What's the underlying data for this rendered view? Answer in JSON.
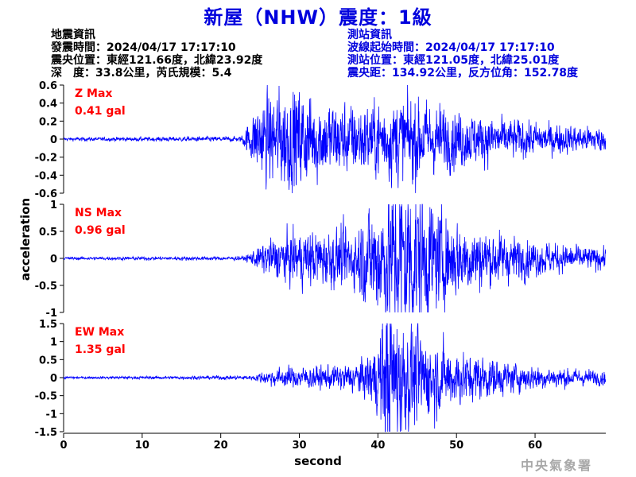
{
  "title": "新屋（NHW）震度：1級",
  "quake_info": {
    "heading": "地震資訊",
    "origin_time": "發震時間：2024/04/17 17:17:10",
    "epicenter": "震央位置：東經121.66度，北緯23.92度",
    "depth_magnitude": "深　度：33.8公里，芮氏規模：5.4"
  },
  "station_info": {
    "heading": "測站資訊",
    "wave_start": "波線起始時間：2024/04/17 17:17:10",
    "location": "測站位置：東經121.05度，北緯25.01度",
    "distance": "震央距：134.92公里，反方位角：152.78度"
  },
  "agency": "中央氣象署",
  "colors": {
    "trace": "#0000ff",
    "max_label": "#ff0000",
    "title": "#0000dd"
  },
  "chart_data": {
    "type": "line",
    "xlabel": "second",
    "ylabel": "acceleration",
    "xlim": [
      0,
      69
    ],
    "xticks": [
      0,
      10,
      20,
      30,
      40,
      50,
      60
    ],
    "grid": false,
    "panels": [
      {
        "component": "Z",
        "max_label": "Z Max",
        "max_value": "0.41 gal",
        "ylim": [
          -0.6,
          0.6
        ],
        "yticks": [
          -0.6,
          -0.4,
          -0.2,
          0,
          0.2,
          0.4,
          0.6
        ],
        "ytick_labels": [
          "-0.6",
          "-0.4",
          "-0.2",
          "0",
          "0.2",
          "0.4",
          "0.6"
        ],
        "envelope": {
          "t": [
            0,
            22.5,
            23.5,
            24.5,
            26,
            28,
            30,
            32,
            35,
            38,
            41,
            43,
            45,
            47,
            50,
            53,
            56,
            60,
            64,
            69
          ],
          "amp": [
            0.01,
            0.015,
            0.09,
            0.2,
            0.26,
            0.3,
            0.3,
            0.24,
            0.21,
            0.2,
            0.23,
            0.25,
            0.24,
            0.2,
            0.17,
            0.14,
            0.12,
            0.1,
            0.08,
            0.07
          ]
        }
      },
      {
        "component": "NS",
        "max_label": "NS Max",
        "max_value": "0.96 gal",
        "ylim": [
          -1,
          1
        ],
        "yticks": [
          -1,
          -0.5,
          0,
          0.5,
          1
        ],
        "ytick_labels": [
          "-1",
          "-0.5",
          "0",
          "0.5",
          "1"
        ],
        "envelope": {
          "t": [
            0,
            23,
            24,
            26,
            28,
            31,
            34,
            37,
            39,
            41,
            43,
            44.5,
            46,
            48,
            50,
            53,
            56,
            60,
            64,
            69
          ],
          "amp": [
            0.015,
            0.02,
            0.07,
            0.17,
            0.22,
            0.27,
            0.27,
            0.3,
            0.5,
            0.7,
            0.85,
            0.8,
            0.6,
            0.45,
            0.38,
            0.3,
            0.24,
            0.17,
            0.13,
            0.1
          ]
        }
      },
      {
        "component": "EW",
        "max_label": "EW Max",
        "max_value": "1.35 gal",
        "ylim": [
          -1.5,
          1.5
        ],
        "yticks": [
          -1.5,
          -1,
          -0.5,
          0,
          0.5,
          1,
          1.5
        ],
        "ytick_labels": [
          "-1.5",
          "-1",
          "-0.5",
          "0",
          "0.5",
          "1",
          "1.5"
        ],
        "envelope": {
          "t": [
            0,
            24,
            25,
            27,
            30,
            34,
            38,
            40,
            41.5,
            43,
            45,
            47,
            49,
            52,
            55,
            58,
            62,
            66,
            69
          ],
          "amp": [
            0.015,
            0.03,
            0.08,
            0.13,
            0.16,
            0.17,
            0.25,
            0.55,
            1.3,
            0.9,
            0.7,
            0.55,
            0.45,
            0.35,
            0.27,
            0.2,
            0.15,
            0.12,
            0.1
          ]
        }
      }
    ]
  }
}
